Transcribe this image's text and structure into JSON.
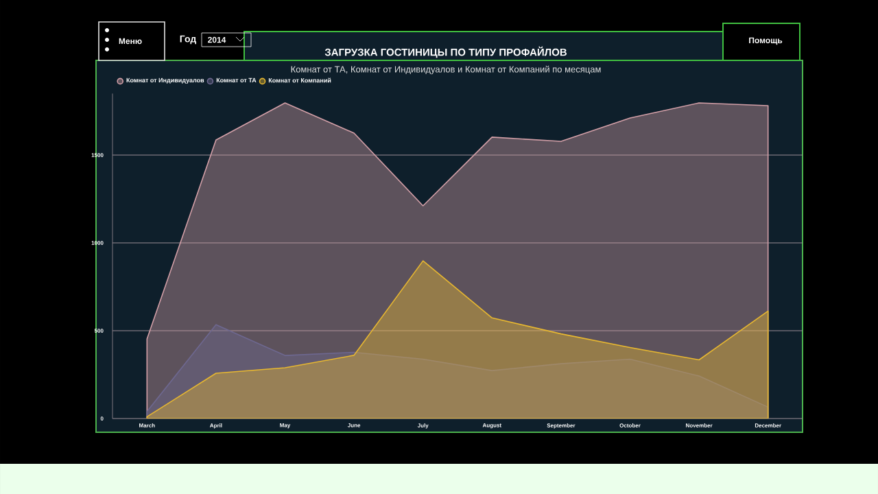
{
  "chart_data": {
    "type": "area",
    "title": "ЗАГРУЗКА ГОСТИНИЦЫ ПО ТИПУ ПРОФАЙЛОВ",
    "subtitle": "Комнат от ТА, Комнат от Индивидуалов и Комнат от Компаний по месяцам",
    "annotations": [
      "Меню",
      "Год",
      "2014",
      "Помощь"
    ],
    "categories": [
      "March",
      "April",
      "May",
      "June",
      "July",
      "August",
      "September",
      "October",
      "November",
      "December"
    ],
    "series": [
      {
        "name": "Комнат от Индивидуалов",
        "color": "#d4a0a8",
        "values": [
          453,
          1586,
          1797,
          1625,
          1211,
          1602,
          1578,
          1711,
          1797,
          1781
        ]
      },
      {
        "name": "Комнат от ТА",
        "color": "#6e6890",
        "values": [
          40,
          534,
          359,
          377,
          338,
          273,
          312,
          338,
          242,
          65
        ]
      },
      {
        "name": "Комнат от Компаний",
        "color": "#e8b830",
        "values": [
          10,
          258,
          289,
          360,
          898,
          573,
          482,
          404,
          334,
          612
        ]
      }
    ],
    "ylim": [
      0,
      1850
    ],
    "yticks": [
      0,
      500,
      1000,
      1500
    ],
    "grid": "y",
    "legend": "top left",
    "marker": "none"
  }
}
